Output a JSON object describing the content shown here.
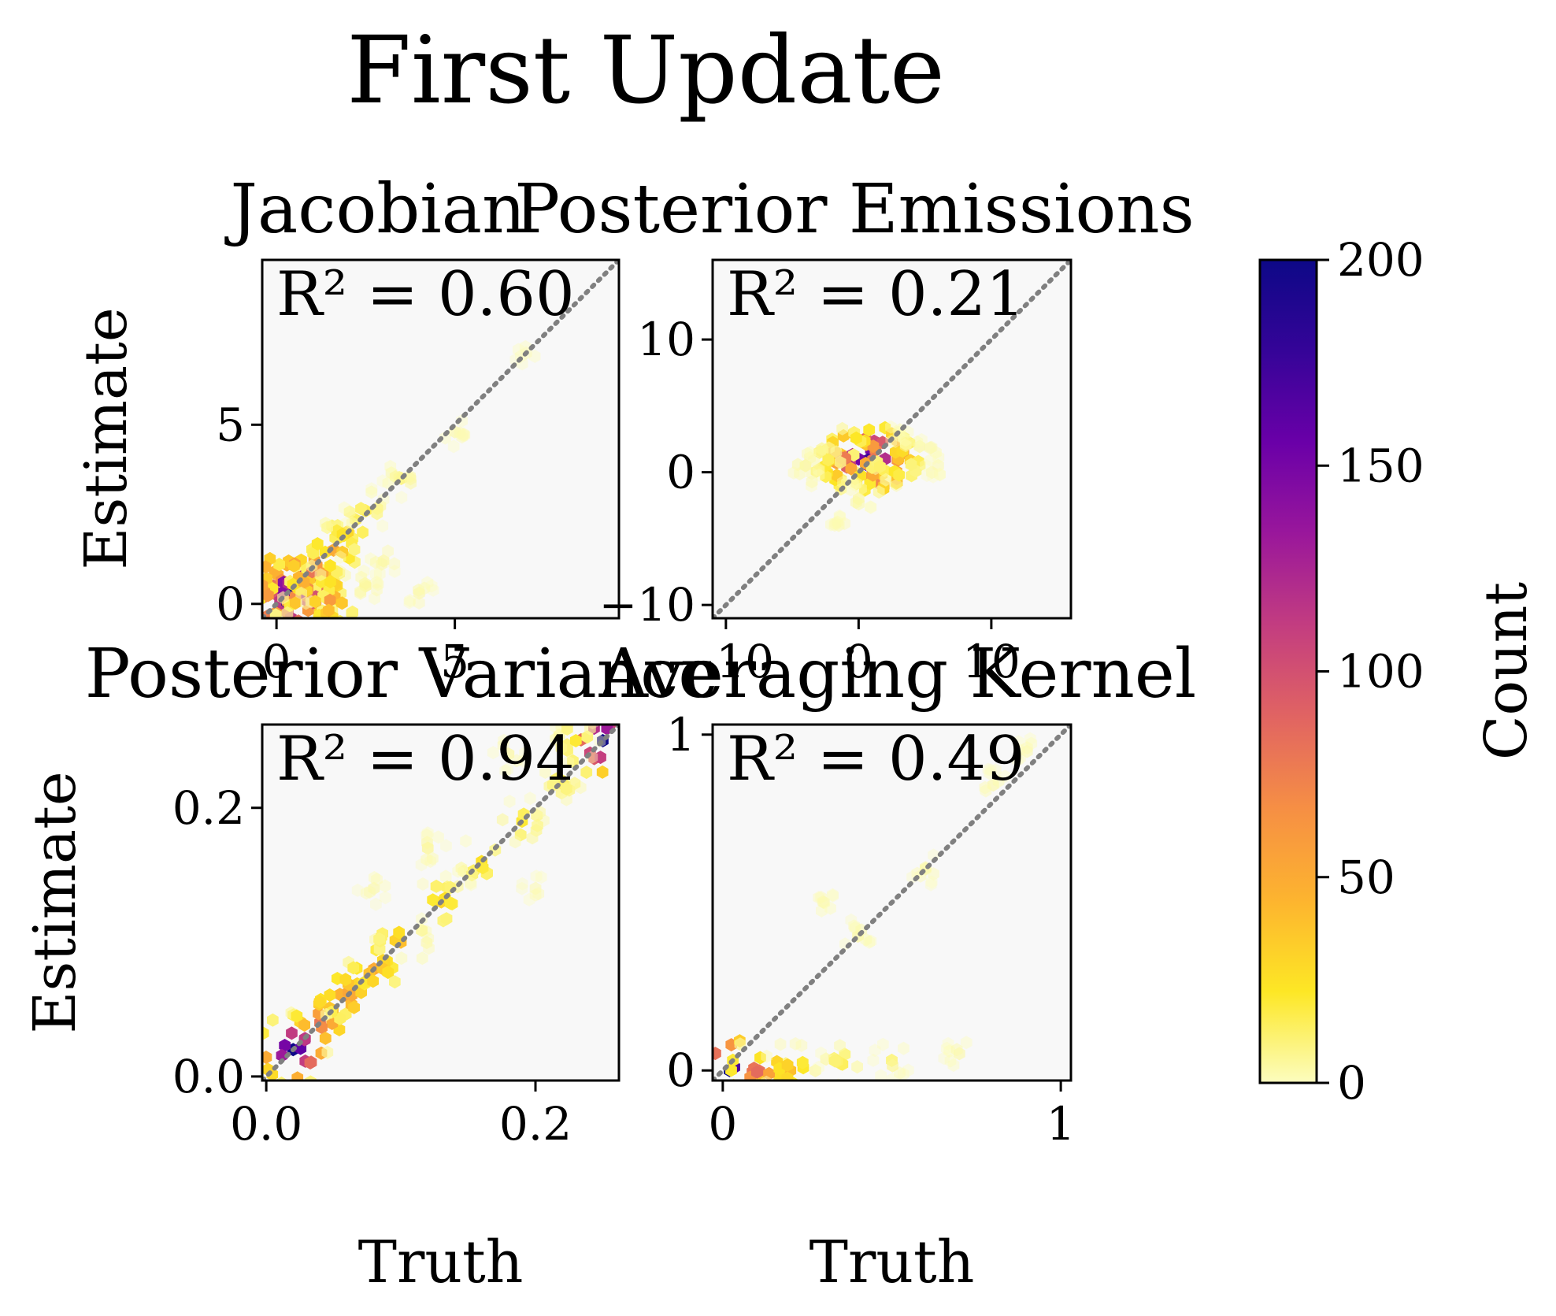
{
  "figure": {
    "title": "First Update"
  },
  "colorbar": {
    "label": "Count",
    "ticks": [
      "0",
      "50",
      "100",
      "150",
      "200"
    ],
    "tick_values": [
      0,
      50,
      100,
      150,
      200
    ],
    "range": [
      0,
      200
    ],
    "colormap": "plasma_r",
    "stops": [
      "#fcfdbf",
      "#fde725",
      "#fdb42f",
      "#f68f44",
      "#e16462",
      "#c33d80",
      "#9a179b",
      "#6a00a8",
      "#350498",
      "#0d0887"
    ]
  },
  "chart_data": [
    {
      "type": "heatmap",
      "title": "Jacobian",
      "r2_text": "R² = 0.60",
      "xlabel": "",
      "ylabel": "Estimate",
      "xlim": [
        -0.4,
        9.6
      ],
      "ylim": [
        -0.4,
        9.6
      ],
      "xticks": [
        {
          "value": 0,
          "label": "0"
        },
        {
          "value": 5,
          "label": "5"
        }
      ],
      "yticks": [
        {
          "value": 0,
          "label": "0"
        },
        {
          "value": 5,
          "label": "5"
        }
      ],
      "one_to_one_line": true,
      "clusters": [
        {
          "x": 0.5,
          "y": 0.3,
          "count": 200
        },
        {
          "x": 0.3,
          "y": 0.05,
          "count": 200
        },
        {
          "x": 0.8,
          "y": 0.5,
          "count": 180
        },
        {
          "x": 0.2,
          "y": 0.6,
          "count": 140
        },
        {
          "x": 1.1,
          "y": 0.2,
          "count": 100
        },
        {
          "x": 1.0,
          "y": 0.9,
          "count": 80
        },
        {
          "x": 1.5,
          "y": 0.1,
          "count": 60
        },
        {
          "x": 1.6,
          "y": 1.5,
          "count": 50
        },
        {
          "x": 2.0,
          "y": 2.0,
          "count": 30
        },
        {
          "x": 2.5,
          "y": 2.6,
          "count": 15
        },
        {
          "x": 3.5,
          "y": 3.5,
          "count": 8
        },
        {
          "x": 5.0,
          "y": 4.8,
          "count": 4
        },
        {
          "x": 7.0,
          "y": 7.0,
          "count": 2
        },
        {
          "x": 2.5,
          "y": 0.5,
          "count": 6
        },
        {
          "x": 4.0,
          "y": 0.3,
          "count": 4
        },
        {
          "x": 3.0,
          "y": 1.2,
          "count": 5
        }
      ]
    },
    {
      "type": "heatmap",
      "title": "Posterior Emissions",
      "r2_text": "R² = 0.21",
      "xlabel": "",
      "ylabel": "",
      "xlim": [
        -11,
        16
      ],
      "ylim": [
        -11,
        16
      ],
      "xticks": [
        {
          "value": -10,
          "label": "−10"
        },
        {
          "value": 0,
          "label": "0"
        },
        {
          "value": 10,
          "label": "10"
        }
      ],
      "yticks": [
        {
          "value": -10,
          "label": "−10"
        },
        {
          "value": 0,
          "label": "0"
        },
        {
          "value": 10,
          "label": "10"
        }
      ],
      "one_to_one_line": true,
      "clusters": [
        {
          "x": 1.0,
          "y": 1.0,
          "count": 200
        },
        {
          "x": 0.0,
          "y": 1.0,
          "count": 150
        },
        {
          "x": 2.0,
          "y": 1.0,
          "count": 120
        },
        {
          "x": -1.0,
          "y": 1.0,
          "count": 80
        },
        {
          "x": 3.0,
          "y": 1.0,
          "count": 40
        },
        {
          "x": -2.5,
          "y": 0.5,
          "count": 20
        },
        {
          "x": 4.5,
          "y": 0.8,
          "count": 15
        },
        {
          "x": -4.0,
          "y": 0.5,
          "count": 6
        },
        {
          "x": 0.0,
          "y": -2.0,
          "count": 5
        },
        {
          "x": -1.5,
          "y": -4.0,
          "count": 3
        },
        {
          "x": 3.0,
          "y": 3.0,
          "count": 3
        },
        {
          "x": 6.0,
          "y": 0.5,
          "count": 3
        }
      ]
    },
    {
      "type": "heatmap",
      "title": "Posterior Variance",
      "r2_text": "R² = 0.94",
      "xlabel": "Truth",
      "ylabel": "Estimate",
      "xlim": [
        -0.003,
        0.262
      ],
      "ylim": [
        -0.003,
        0.262
      ],
      "xticks": [
        {
          "value": 0.0,
          "label": "0.0"
        },
        {
          "value": 0.2,
          "label": "0.2"
        }
      ],
      "yticks": [
        {
          "value": 0.0,
          "label": "0.0"
        },
        {
          "value": 0.2,
          "label": "0.2"
        }
      ],
      "one_to_one_line": true,
      "clusters": [
        {
          "x": 0.02,
          "y": 0.02,
          "count": 200
        },
        {
          "x": 0.25,
          "y": 0.25,
          "count": 200
        },
        {
          "x": 0.04,
          "y": 0.04,
          "count": 80
        },
        {
          "x": 0.06,
          "y": 0.06,
          "count": 60
        },
        {
          "x": 0.08,
          "y": 0.08,
          "count": 50
        },
        {
          "x": 0.1,
          "y": 0.1,
          "count": 40
        },
        {
          "x": 0.13,
          "y": 0.13,
          "count": 30
        },
        {
          "x": 0.16,
          "y": 0.16,
          "count": 25
        },
        {
          "x": 0.19,
          "y": 0.19,
          "count": 20
        },
        {
          "x": 0.22,
          "y": 0.22,
          "count": 15
        },
        {
          "x": 0.23,
          "y": 0.25,
          "count": 20
        },
        {
          "x": 0.12,
          "y": 0.17,
          "count": 6
        },
        {
          "x": 0.08,
          "y": 0.14,
          "count": 4
        },
        {
          "x": 0.18,
          "y": 0.24,
          "count": 5
        },
        {
          "x": 0.2,
          "y": 0.14,
          "count": 3
        }
      ]
    },
    {
      "type": "heatmap",
      "title": "Averaging Kernel",
      "r2_text": "R² = 0.49",
      "xlabel": "Truth",
      "ylabel": "",
      "xlim": [
        -0.03,
        1.03
      ],
      "ylim": [
        -0.03,
        1.03
      ],
      "xticks": [
        {
          "value": 0,
          "label": "0"
        },
        {
          "value": 1,
          "label": "1"
        }
      ],
      "yticks": [
        {
          "value": 0,
          "label": "0"
        },
        {
          "value": 1,
          "label": "1"
        }
      ],
      "one_to_one_line": true,
      "clusters": [
        {
          "x": 0.02,
          "y": 0.0,
          "count": 200
        },
        {
          "x": 0.1,
          "y": 0.0,
          "count": 90
        },
        {
          "x": 0.2,
          "y": 0.0,
          "count": 40
        },
        {
          "x": 0.35,
          "y": 0.02,
          "count": 15
        },
        {
          "x": 0.5,
          "y": 0.03,
          "count": 8
        },
        {
          "x": 0.7,
          "y": 0.05,
          "count": 4
        },
        {
          "x": 0.4,
          "y": 0.4,
          "count": 5
        },
        {
          "x": 0.6,
          "y": 0.6,
          "count": 4
        },
        {
          "x": 0.8,
          "y": 0.85,
          "count": 4
        },
        {
          "x": 0.3,
          "y": 0.5,
          "count": 3
        },
        {
          "x": 0.9,
          "y": 0.95,
          "count": 3
        }
      ]
    }
  ]
}
